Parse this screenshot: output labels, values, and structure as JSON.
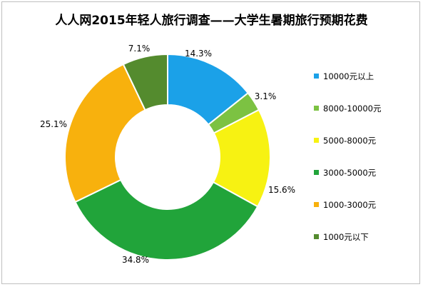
{
  "chart_data": {
    "type": "pie",
    "variant": "doughnut",
    "title": "人人网2015年轻人旅行调查——大学生暑期旅行预期花费",
    "legend_position": "right",
    "slices": [
      {
        "name": "10000元以上",
        "value": 14.3,
        "label": "14.3%",
        "color": "#1ba1e8"
      },
      {
        "name": "8000-10000元",
        "value": 3.1,
        "label": "3.1%",
        "color": "#7cc242"
      },
      {
        "name": "5000-8000元",
        "value": 15.6,
        "label": "15.6%",
        "color": "#f7f212"
      },
      {
        "name": "3000-5000元",
        "value": 34.8,
        "label": "34.8%",
        "color": "#21a43a"
      },
      {
        "name": "1000-3000元",
        "value": 25.1,
        "label": "25.1%",
        "color": "#f8b10d"
      },
      {
        "name": "1000元以下",
        "value": 7.1,
        "label": "7.1%",
        "color": "#548b2e"
      }
    ]
  }
}
